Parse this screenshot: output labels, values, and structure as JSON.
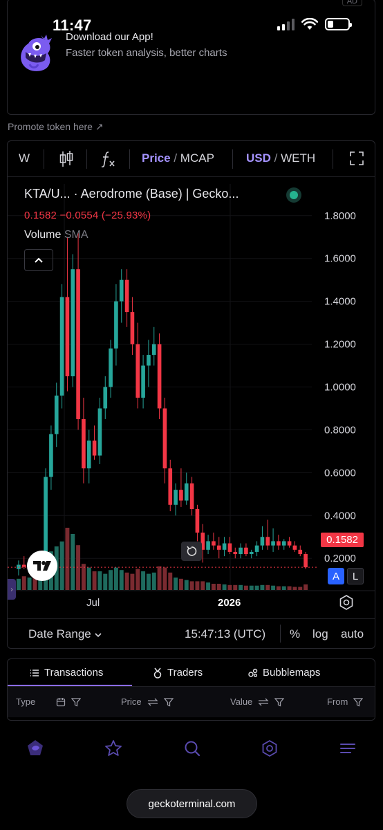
{
  "status_bar": {
    "time": "11:47"
  },
  "ad": {
    "badge": "AD",
    "title": "Download our App!",
    "subtitle": "Faster token analysis, better charts"
  },
  "promote": {
    "label": "Promote token here ↗"
  },
  "toolbar": {
    "interval": "W",
    "price_label": "Price",
    "mcap_label": "MCAP",
    "usd_label": "USD",
    "weth_label": "WETH",
    "slash": "/"
  },
  "legend": {
    "title": "KTA/U...  · Aerodrome (Base) | Gecko...",
    "price_line": "0.1582  −0.0554 (−25.93%)",
    "volume_label": "Volume",
    "sma_label": "SMA"
  },
  "price_tag": "0.1582",
  "buttons": {
    "auto_a": "A",
    "log_l": "L"
  },
  "footer": {
    "date_range": "Date Range",
    "clock": "15:47:13 (UTC)",
    "percent": "%",
    "log": "log",
    "auto": "auto"
  },
  "tabs": {
    "transactions": "Transactions",
    "traders": "Traders",
    "bubblemaps": "Bubblemaps"
  },
  "table_headers": {
    "type": "Type",
    "price": "Price",
    "value": "Value",
    "from": "From"
  },
  "url": "geckoterminal.com",
  "colors": {
    "up": "#26a69a",
    "down": "#f23645",
    "accent": "#a593ff",
    "vol_up": "#1e6b5e",
    "vol_down": "#7a2a30"
  },
  "chart_data": {
    "type": "candlestick",
    "ylim": [
      0.12,
      1.88
    ],
    "y_ticks": [
      "1.8000",
      "1.6000",
      "1.4000",
      "1.2000",
      "1.0000",
      "0.8000",
      "0.6000",
      "0.4000",
      "0.2000"
    ],
    "x_ticks": [
      "Jul",
      "2026"
    ],
    "last_price": 0.1582,
    "candles": [
      {
        "o": 0.15,
        "h": 0.19,
        "l": 0.12,
        "c": 0.17
      },
      {
        "o": 0.17,
        "h": 0.21,
        "l": 0.15,
        "c": 0.16
      },
      {
        "o": 0.16,
        "h": 0.2,
        "l": 0.14,
        "c": 0.18
      },
      {
        "o": 0.18,
        "h": 0.21,
        "l": 0.15,
        "c": 0.16
      },
      {
        "o": 0.16,
        "h": 0.22,
        "l": 0.14,
        "c": 0.19
      },
      {
        "o": 0.19,
        "h": 0.62,
        "l": 0.17,
        "c": 0.58
      },
      {
        "o": 0.58,
        "h": 0.82,
        "l": 0.52,
        "c": 0.78
      },
      {
        "o": 0.78,
        "h": 1.02,
        "l": 0.72,
        "c": 0.96
      },
      {
        "o": 0.96,
        "h": 1.48,
        "l": 0.9,
        "c": 1.42
      },
      {
        "o": 1.42,
        "h": 1.7,
        "l": 0.98,
        "c": 1.05
      },
      {
        "o": 1.05,
        "h": 1.62,
        "l": 1.0,
        "c": 1.55
      },
      {
        "o": 1.55,
        "h": 1.72,
        "l": 0.8,
        "c": 0.85
      },
      {
        "o": 0.85,
        "h": 0.95,
        "l": 0.55,
        "c": 0.62
      },
      {
        "o": 0.62,
        "h": 0.8,
        "l": 0.55,
        "c": 0.75
      },
      {
        "o": 0.75,
        "h": 0.82,
        "l": 0.66,
        "c": 0.68
      },
      {
        "o": 0.68,
        "h": 0.95,
        "l": 0.64,
        "c": 0.9
      },
      {
        "o": 0.9,
        "h": 1.05,
        "l": 0.85,
        "c": 1.0
      },
      {
        "o": 1.0,
        "h": 1.22,
        "l": 0.95,
        "c": 1.18
      },
      {
        "o": 1.18,
        "h": 1.48,
        "l": 1.1,
        "c": 1.4
      },
      {
        "o": 1.4,
        "h": 1.55,
        "l": 1.3,
        "c": 1.5
      },
      {
        "o": 1.5,
        "h": 1.55,
        "l": 1.28,
        "c": 1.35
      },
      {
        "o": 1.35,
        "h": 1.42,
        "l": 1.15,
        "c": 1.2
      },
      {
        "o": 1.2,
        "h": 1.3,
        "l": 0.9,
        "c": 0.95
      },
      {
        "o": 0.95,
        "h": 1.15,
        "l": 0.9,
        "c": 1.1
      },
      {
        "o": 1.1,
        "h": 1.22,
        "l": 1.0,
        "c": 1.15
      },
      {
        "o": 1.15,
        "h": 1.28,
        "l": 1.1,
        "c": 1.2
      },
      {
        "o": 1.2,
        "h": 1.25,
        "l": 0.85,
        "c": 0.9
      },
      {
        "o": 0.9,
        "h": 0.95,
        "l": 0.55,
        "c": 0.62
      },
      {
        "o": 0.62,
        "h": 0.66,
        "l": 0.42,
        "c": 0.45
      },
      {
        "o": 0.45,
        "h": 0.55,
        "l": 0.4,
        "c": 0.52
      },
      {
        "o": 0.52,
        "h": 0.62,
        "l": 0.44,
        "c": 0.47
      },
      {
        "o": 0.47,
        "h": 0.6,
        "l": 0.45,
        "c": 0.55
      },
      {
        "o": 0.55,
        "h": 0.58,
        "l": 0.4,
        "c": 0.43
      },
      {
        "o": 0.43,
        "h": 0.45,
        "l": 0.28,
        "c": 0.32
      },
      {
        "o": 0.32,
        "h": 0.36,
        "l": 0.18,
        "c": 0.24
      },
      {
        "o": 0.24,
        "h": 0.31,
        "l": 0.22,
        "c": 0.28
      },
      {
        "o": 0.28,
        "h": 0.32,
        "l": 0.24,
        "c": 0.26
      },
      {
        "o": 0.26,
        "h": 0.3,
        "l": 0.2,
        "c": 0.24
      },
      {
        "o": 0.24,
        "h": 0.3,
        "l": 0.21,
        "c": 0.27
      },
      {
        "o": 0.27,
        "h": 0.3,
        "l": 0.22,
        "c": 0.23
      },
      {
        "o": 0.23,
        "h": 0.25,
        "l": 0.2,
        "c": 0.22
      },
      {
        "o": 0.22,
        "h": 0.27,
        "l": 0.2,
        "c": 0.25
      },
      {
        "o": 0.25,
        "h": 0.27,
        "l": 0.21,
        "c": 0.22
      },
      {
        "o": 0.22,
        "h": 0.24,
        "l": 0.2,
        "c": 0.23
      },
      {
        "o": 0.23,
        "h": 0.28,
        "l": 0.21,
        "c": 0.26
      },
      {
        "o": 0.26,
        "h": 0.35,
        "l": 0.24,
        "c": 0.3
      },
      {
        "o": 0.3,
        "h": 0.38,
        "l": 0.24,
        "c": 0.26
      },
      {
        "o": 0.26,
        "h": 0.34,
        "l": 0.23,
        "c": 0.28
      },
      {
        "o": 0.28,
        "h": 0.31,
        "l": 0.24,
        "c": 0.26
      },
      {
        "o": 0.26,
        "h": 0.29,
        "l": 0.24,
        "c": 0.28
      },
      {
        "o": 0.28,
        "h": 0.3,
        "l": 0.25,
        "c": 0.26
      },
      {
        "o": 0.26,
        "h": 0.28,
        "l": 0.23,
        "c": 0.24
      },
      {
        "o": 0.24,
        "h": 0.26,
        "l": 0.21,
        "c": 0.22
      },
      {
        "o": 0.22,
        "h": 0.23,
        "l": 0.15,
        "c": 0.1582
      }
    ],
    "volumes": [
      18,
      22,
      20,
      24,
      28,
      50,
      62,
      70,
      78,
      100,
      90,
      72,
      42,
      36,
      30,
      30,
      26,
      32,
      36,
      32,
      28,
      26,
      34,
      30,
      26,
      28,
      38,
      36,
      28,
      20,
      18,
      16,
      14,
      14,
      14,
      12,
      10,
      10,
      9,
      8,
      8,
      8,
      7,
      7,
      7,
      8,
      8,
      7,
      6,
      6,
      6,
      5,
      5,
      9
    ]
  }
}
